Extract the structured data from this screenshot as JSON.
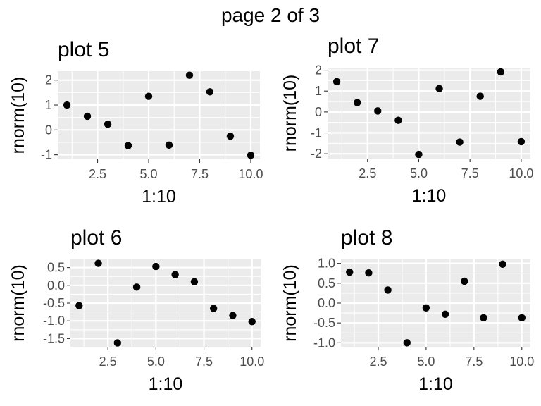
{
  "page": {
    "title": "page 2 of 3"
  },
  "style": {
    "panel_background": "#ebebeb",
    "grid_major": "#ffffff",
    "tick_color": "#333333",
    "point_color": "#000000"
  },
  "chart_data": [
    {
      "type": "scatter",
      "title": "plot 5",
      "xlabel": "1:10",
      "ylabel": "rnorm(10)",
      "x": [
        1,
        2,
        3,
        4,
        5,
        6,
        7,
        8,
        9,
        10
      ],
      "y": [
        1.0,
        0.55,
        0.23,
        -0.63,
        1.35,
        -0.61,
        2.2,
        1.53,
        -0.25,
        -1.02
      ],
      "xlim": [
        0.55,
        10.45
      ],
      "ylim": [
        -1.18,
        2.36
      ],
      "xticks": [
        2.5,
        5.0,
        7.5,
        10.0
      ],
      "xtick_labels": [
        "2.5",
        "5.0",
        "7.5",
        "10.0"
      ],
      "yticks": [
        -1,
        0,
        1,
        2
      ],
      "ytick_labels": [
        "-1",
        "0",
        "1",
        "2"
      ],
      "grid": true
    },
    {
      "type": "scatter",
      "title": "plot 7",
      "xlabel": "1:10",
      "ylabel": "rnorm(10)",
      "x": [
        1,
        2,
        3,
        4,
        5,
        6,
        7,
        8,
        9,
        10
      ],
      "y": [
        1.45,
        0.45,
        0.05,
        -0.4,
        -2.03,
        1.12,
        -1.44,
        0.75,
        1.92,
        -1.42
      ],
      "xlim": [
        0.55,
        10.45
      ],
      "ylim": [
        -2.23,
        2.12
      ],
      "xticks": [
        2.5,
        5.0,
        7.5,
        10.0
      ],
      "xtick_labels": [
        "2.5",
        "5.0",
        "7.5",
        "10.0"
      ],
      "yticks": [
        -2,
        -1,
        0,
        1,
        2
      ],
      "ytick_labels": [
        "-2",
        "-1",
        "0",
        "1",
        "2"
      ],
      "grid": true
    },
    {
      "type": "scatter",
      "title": "plot 6",
      "xlabel": "1:10",
      "ylabel": "rnorm(10)",
      "x": [
        1,
        2,
        3,
        4,
        5,
        6,
        7,
        8,
        9,
        10
      ],
      "y": [
        -0.57,
        0.62,
        -1.62,
        -0.05,
        0.53,
        0.3,
        0.1,
        -0.65,
        -0.85,
        -1.02
      ],
      "xlim": [
        0.55,
        10.45
      ],
      "ylim": [
        -1.73,
        0.73
      ],
      "xticks": [
        2.5,
        5.0,
        7.5,
        10.0
      ],
      "xtick_labels": [
        "2.5",
        "5.0",
        "7.5",
        "10.0"
      ],
      "yticks": [
        0.5,
        0.0,
        -0.5,
        -1.0,
        -1.5
      ],
      "ytick_labels": [
        "0.5",
        "0.0",
        "-0.5",
        "-1.0",
        "-1.5"
      ],
      "grid": true
    },
    {
      "type": "scatter",
      "title": "plot 8",
      "xlabel": "1:10",
      "ylabel": "rnorm(10)",
      "x": [
        1,
        2,
        3,
        4,
        5,
        6,
        7,
        8,
        9,
        10
      ],
      "y": [
        0.78,
        0.76,
        0.33,
        -1.0,
        -0.12,
        -0.28,
        0.55,
        -0.37,
        0.98,
        -0.37
      ],
      "xlim": [
        0.55,
        10.45
      ],
      "ylim": [
        -1.1,
        1.1
      ],
      "xticks": [
        2.5,
        5.0,
        7.5,
        10.0
      ],
      "xtick_labels": [
        "2.5",
        "5.0",
        "7.5",
        "10.0"
      ],
      "yticks": [
        1.0,
        0.5,
        0.0,
        -0.5,
        -1.0
      ],
      "ytick_labels": [
        "1.0",
        "0.5",
        "0.0",
        "-0.5",
        "-1.0"
      ],
      "grid": true
    }
  ]
}
